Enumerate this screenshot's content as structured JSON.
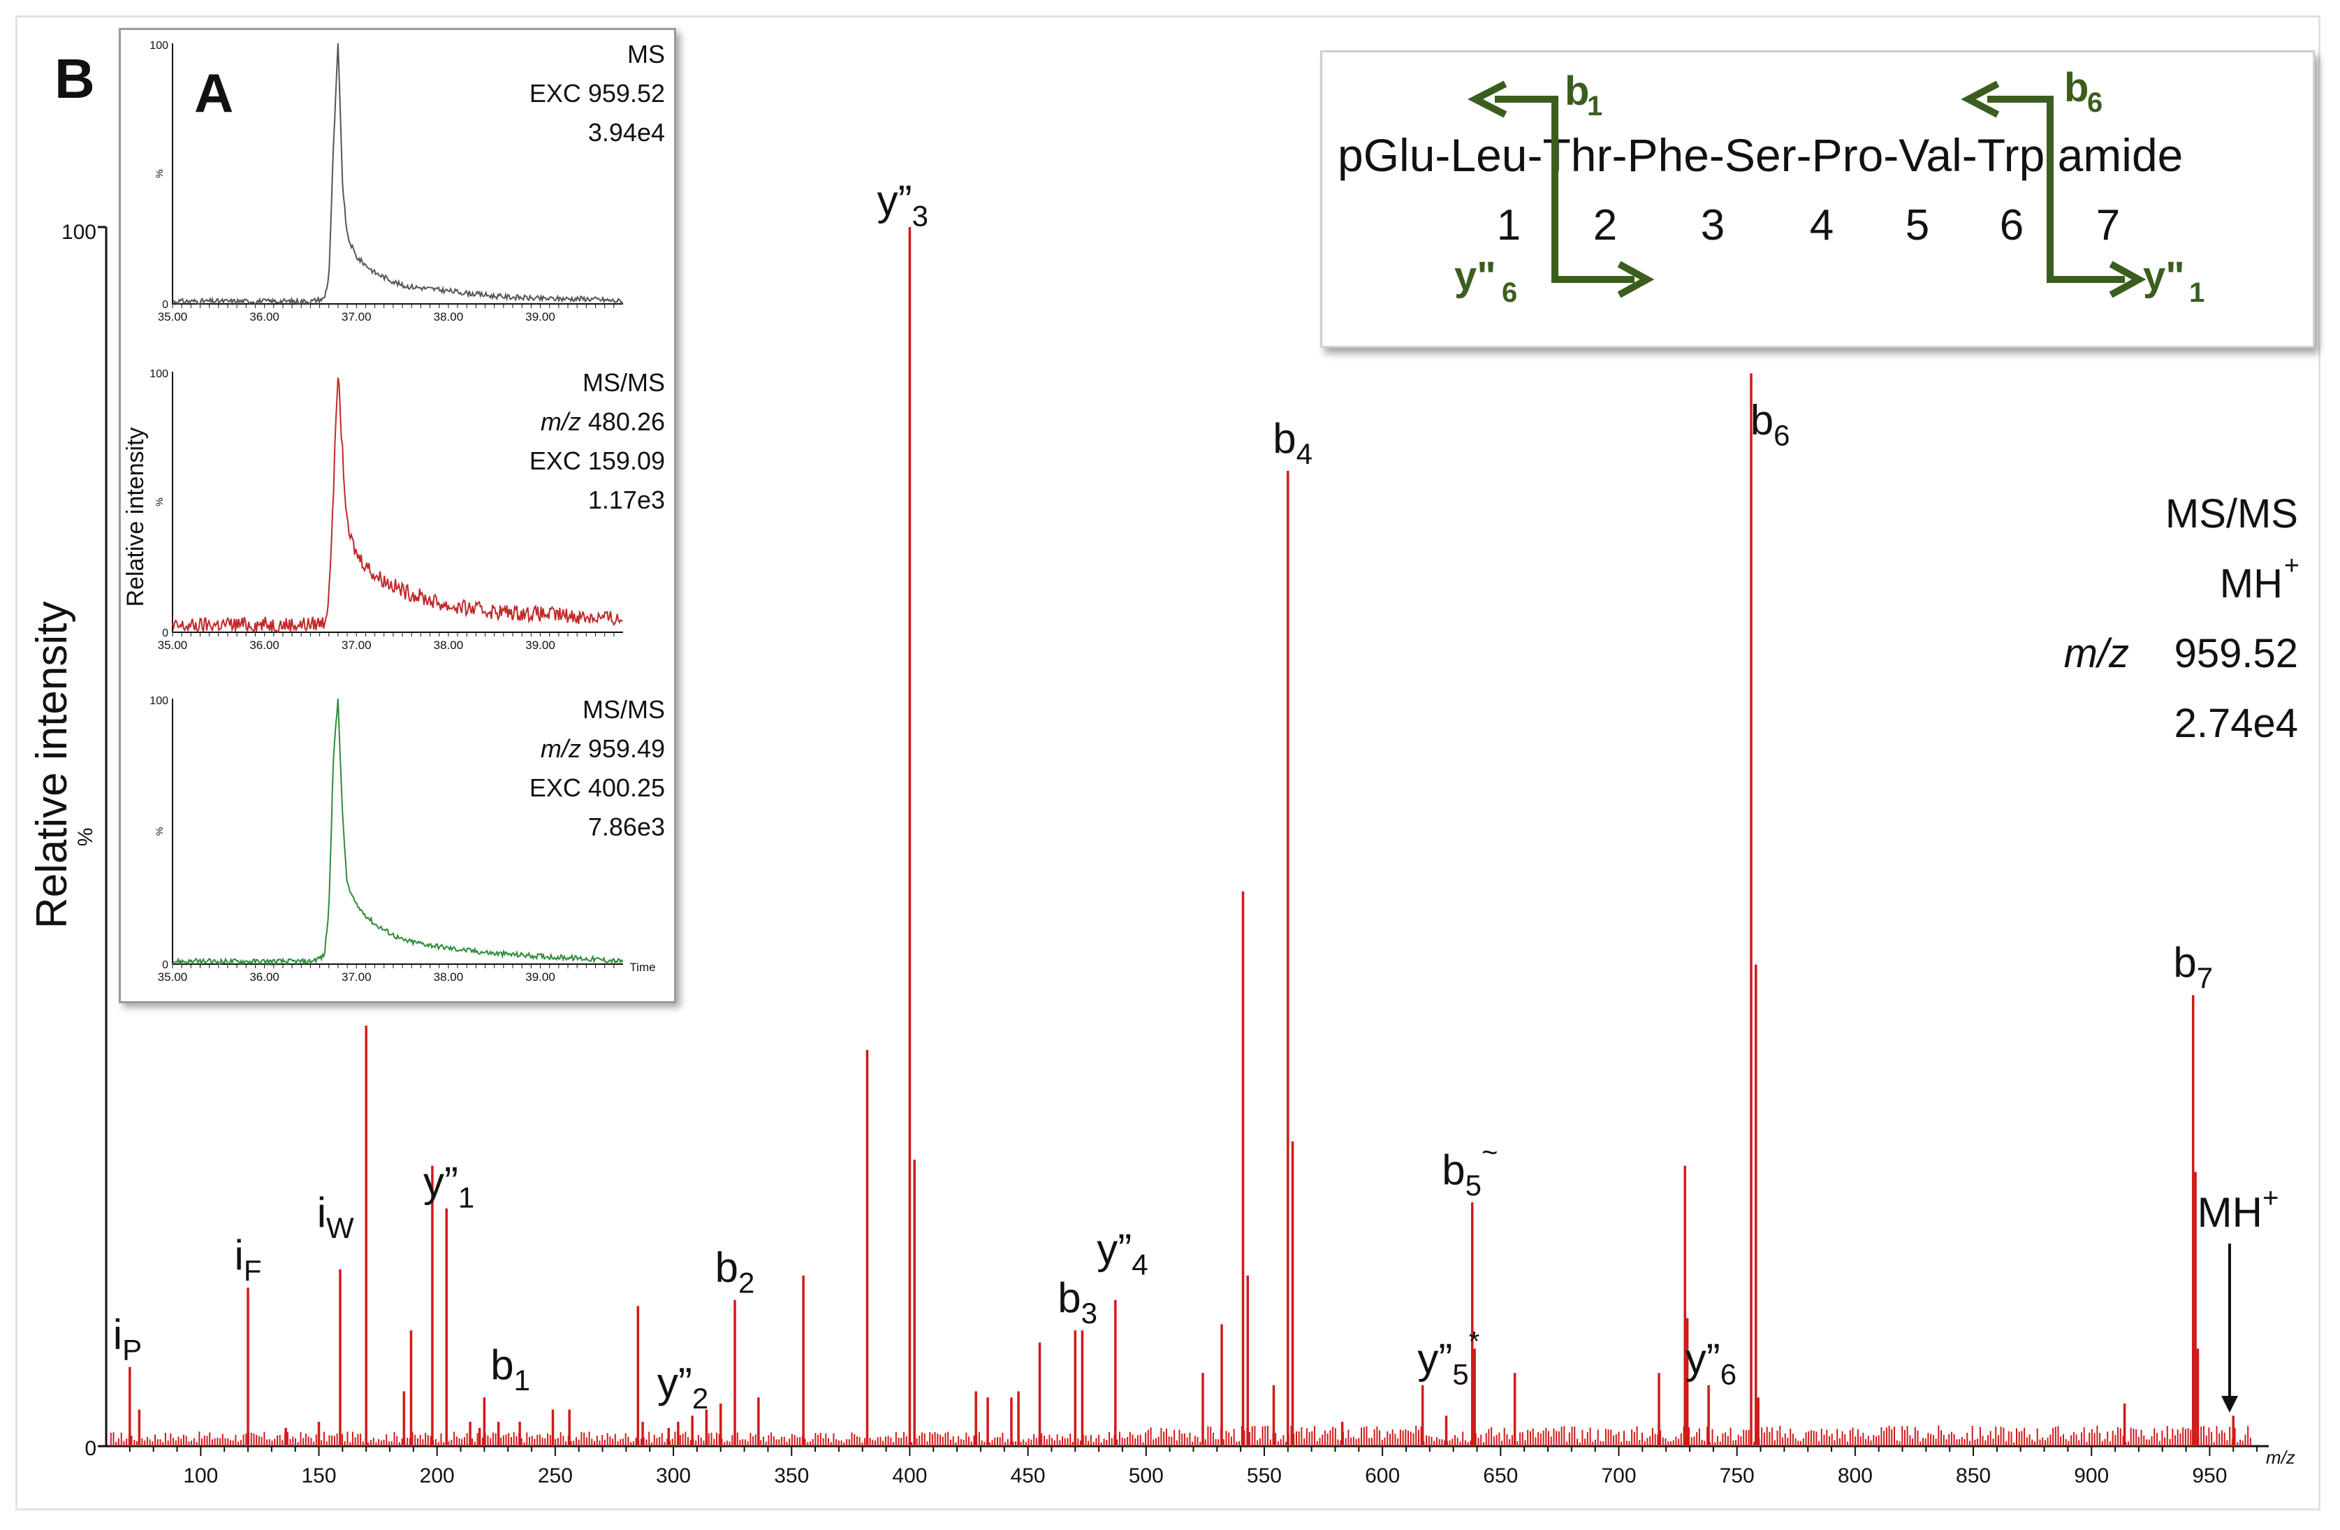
{
  "panel_labels": {
    "outer": "B",
    "inset": "A"
  },
  "main": {
    "ylabel": "Relative intensity",
    "ytick_top": "100",
    "ytick_bottom": "0",
    "yunit": "%",
    "xunit": "m/z",
    "info": [
      "MS/MS",
      "MH",
      "m/z",
      "959.52",
      "2.74e4"
    ],
    "info_mh_sup": "+"
  },
  "sequence": {
    "text": "pGlu-Leu-Thr-Phe-Ser-Pro-Val-Trp amide",
    "positions": [
      "1",
      "2",
      "3",
      "4",
      "5",
      "6",
      "7"
    ],
    "labels": {
      "b1": "b",
      "b1_sub": "1",
      "b6": "b",
      "b6_sub": "6",
      "y6": "y\"",
      "y6_sub": "6",
      "y1": "y\"",
      "y1_sub": "1"
    },
    "arrow_color": "#3b5e1f"
  },
  "inset_traces": [
    {
      "lines": [
        "MS",
        "EXC 959.52",
        "3.94e4"
      ],
      "color": "#555555"
    },
    {
      "lines": [
        "MS/MS",
        "m/z 480.26",
        "EXC 159.09",
        "1.17e3"
      ],
      "color": "#c0282a"
    },
    {
      "lines": [
        "MS/MS",
        "m/z 959.49",
        "EXC 400.25",
        "7.86e3"
      ],
      "color": "#2e8b3a"
    }
  ],
  "inset_common": {
    "ylabel": "Relative intensity",
    "ytick_top": "100",
    "ytick_bottom": "0",
    "yunit": "%",
    "xticks": [
      "35.00",
      "36.00",
      "37.00",
      "38.00",
      "39.00"
    ],
    "xunit": "Time"
  },
  "colors": {
    "spectrum": "#d11a1a"
  },
  "chart_data": [
    {
      "type": "bar",
      "title": "",
      "xlabel": "m/z",
      "ylabel": "Relative intensity",
      "xlim": [
        60,
        975
      ],
      "ylim": [
        0,
        100
      ],
      "xticks": [
        100,
        150,
        200,
        250,
        300,
        350,
        400,
        450,
        500,
        550,
        600,
        650,
        700,
        750,
        800,
        850,
        900,
        950
      ],
      "peaks": [
        {
          "x": 70,
          "y": 6.5
        },
        {
          "x": 74,
          "y": 3
        },
        {
          "x": 120,
          "y": 13
        },
        {
          "x": 136,
          "y": 1.5
        },
        {
          "x": 150,
          "y": 2
        },
        {
          "x": 159,
          "y": 14.5
        },
        {
          "x": 170,
          "y": 34.5
        },
        {
          "x": 186,
          "y": 4.5
        },
        {
          "x": 189,
          "y": 9.5
        },
        {
          "x": 198,
          "y": 23
        },
        {
          "x": 204,
          "y": 19.5
        },
        {
          "x": 214,
          "y": 2
        },
        {
          "x": 218,
          "y": 1.5
        },
        {
          "x": 220,
          "y": 4
        },
        {
          "x": 226,
          "y": 2
        },
        {
          "x": 235,
          "y": 2
        },
        {
          "x": 249,
          "y": 3
        },
        {
          "x": 256,
          "y": 3
        },
        {
          "x": 285,
          "y": 11.5
        },
        {
          "x": 287,
          "y": 2
        },
        {
          "x": 298,
          "y": 1.5
        },
        {
          "x": 302,
          "y": 2
        },
        {
          "x": 308,
          "y": 2.5
        },
        {
          "x": 314,
          "y": 3
        },
        {
          "x": 320,
          "y": 3.5
        },
        {
          "x": 326,
          "y": 12
        },
        {
          "x": 336,
          "y": 4
        },
        {
          "x": 355,
          "y": 14
        },
        {
          "x": 382,
          "y": 32.5
        },
        {
          "x": 400,
          "y": 100
        },
        {
          "x": 402,
          "y": 23.5
        },
        {
          "x": 428,
          "y": 4.5
        },
        {
          "x": 433,
          "y": 4
        },
        {
          "x": 443,
          "y": 4
        },
        {
          "x": 446,
          "y": 4.5
        },
        {
          "x": 455,
          "y": 8.5
        },
        {
          "x": 470,
          "y": 9.5
        },
        {
          "x": 473,
          "y": 9.5
        },
        {
          "x": 487,
          "y": 12
        },
        {
          "x": 524,
          "y": 6
        },
        {
          "x": 532,
          "y": 10
        },
        {
          "x": 541,
          "y": 45.5
        },
        {
          "x": 543,
          "y": 14
        },
        {
          "x": 554,
          "y": 5
        },
        {
          "x": 560,
          "y": 80
        },
        {
          "x": 562,
          "y": 25
        },
        {
          "x": 583,
          "y": 2
        },
        {
          "x": 617,
          "y": 5
        },
        {
          "x": 627,
          "y": 2.5
        },
        {
          "x": 638,
          "y": 20
        },
        {
          "x": 639,
          "y": 8
        },
        {
          "x": 656,
          "y": 6
        },
        {
          "x": 717,
          "y": 6
        },
        {
          "x": 728,
          "y": 23
        },
        {
          "x": 729,
          "y": 10.5
        },
        {
          "x": 738,
          "y": 5
        },
        {
          "x": 756,
          "y": 88
        },
        {
          "x": 758,
          "y": 39.5
        },
        {
          "x": 759,
          "y": 4
        },
        {
          "x": 914,
          "y": 3.5
        },
        {
          "x": 943,
          "y": 37
        },
        {
          "x": 944,
          "y": 22.5
        },
        {
          "x": 945,
          "y": 8
        },
        {
          "x": 960,
          "y": 2.5
        }
      ],
      "annotations": [
        {
          "text": "i",
          "sub": "P",
          "x": 69,
          "y": 8
        },
        {
          "text": "i",
          "sub": "F",
          "x": 120,
          "y": 14.5
        },
        {
          "text": "i",
          "sub": "W",
          "x": 157,
          "y": 18
        },
        {
          "text": "y”",
          "sub": "1",
          "x": 205,
          "y": 20.5
        },
        {
          "text": "b",
          "sub": "1",
          "x": 231,
          "y": 5.5
        },
        {
          "text": "y”",
          "sub": "2",
          "x": 304,
          "y": 4
        },
        {
          "text": "b",
          "sub": "2",
          "x": 326,
          "y": 13.5
        },
        {
          "text": "y”",
          "sub": "3",
          "x": 397,
          "y": 101
        },
        {
          "text": "b",
          "sub": "3",
          "x": 471,
          "y": 11
        },
        {
          "text": "y”",
          "sub": "4",
          "x": 490,
          "y": 15
        },
        {
          "text": "b",
          "sub": "4",
          "x": 562,
          "y": 81.5
        },
        {
          "text": "y”",
          "sub": "5",
          "sup": "*",
          "x": 628,
          "y": 6
        },
        {
          "text": "b",
          "sub": "5",
          "sup": "~",
          "x": 637,
          "y": 21.5
        },
        {
          "text": "y”",
          "sub": "6",
          "x": 739,
          "y": 6
        },
        {
          "text": "b",
          "sub": "6",
          "x": 764,
          "y": 83
        },
        {
          "text": "b",
          "sub": "7",
          "x": 943,
          "y": 38.5
        },
        {
          "text": "MH",
          "sup": "+",
          "x": 962,
          "y": 18
        }
      ]
    },
    {
      "type": "line",
      "title": "MS",
      "xlabel": "",
      "ylabel": "Relative intensity",
      "xlim": [
        35.0,
        39.9
      ],
      "ylim": [
        0,
        100
      ],
      "x": [
        35.0,
        35.5,
        36.0,
        36.5,
        36.65,
        36.7,
        36.75,
        36.8,
        36.85,
        36.9,
        37.0,
        37.2,
        37.5,
        38.0,
        38.5,
        39.0,
        39.5,
        39.9
      ],
      "series": [
        {
          "values": [
            1,
            1,
            1,
            1,
            2,
            10,
            60,
            100,
            45,
            26,
            18,
            12,
            7,
            5,
            3,
            2,
            2,
            1
          ]
        }
      ]
    },
    {
      "type": "line",
      "title": "MS/MS",
      "xlabel": "",
      "ylabel": "Relative intensity",
      "xlim": [
        35.0,
        39.9
      ],
      "ylim": [
        0,
        100
      ],
      "x": [
        35.0,
        35.5,
        36.0,
        36.5,
        36.65,
        36.7,
        36.75,
        36.8,
        36.85,
        36.9,
        37.0,
        37.2,
        37.5,
        38.0,
        38.5,
        39.0,
        39.5,
        39.9
      ],
      "series": [
        {
          "values": [
            2,
            3,
            3,
            3,
            4,
            12,
            55,
            100,
            68,
            40,
            30,
            22,
            16,
            10,
            8,
            7,
            6,
            5
          ]
        }
      ]
    },
    {
      "type": "line",
      "title": "MS/MS",
      "xlabel": "Time",
      "ylabel": "Relative intensity",
      "xlim": [
        35.0,
        39.9
      ],
      "ylim": [
        0,
        100
      ],
      "x": [
        35.0,
        35.5,
        36.0,
        36.5,
        36.65,
        36.7,
        36.75,
        36.8,
        36.85,
        36.9,
        37.0,
        37.2,
        37.5,
        38.0,
        38.5,
        39.0,
        39.5,
        39.9
      ],
      "series": [
        {
          "values": [
            1,
            1,
            1,
            1,
            3,
            20,
            78,
            100,
            55,
            30,
            22,
            15,
            9,
            6,
            4,
            3,
            2,
            1
          ]
        }
      ]
    }
  ]
}
